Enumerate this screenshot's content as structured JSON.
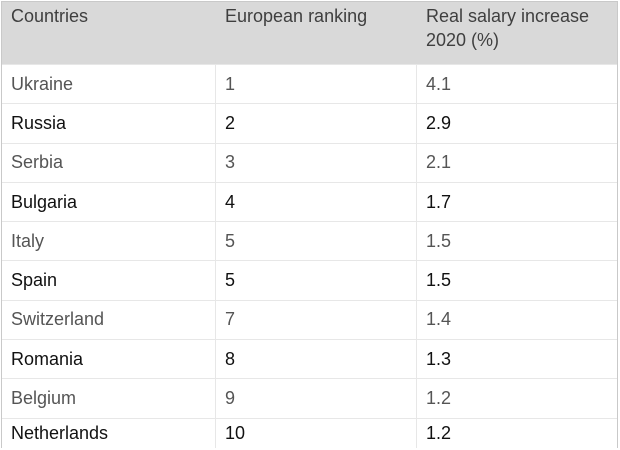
{
  "chart_data": {
    "type": "table",
    "columns": [
      "Countries",
      "European ranking",
      "Real salary increase 2020 (%)"
    ],
    "rows": [
      [
        "Ukraine",
        "1",
        "4.1"
      ],
      [
        "Russia",
        "2",
        "2.9"
      ],
      [
        "Serbia",
        "3",
        "2.1"
      ],
      [
        "Bulgaria",
        "4",
        "1.7"
      ],
      [
        "Italy",
        "5",
        "1.5"
      ],
      [
        "Spain",
        "5",
        "1.5"
      ],
      [
        "Switzerland",
        "7",
        "1.4"
      ],
      [
        "Romania",
        "8",
        "1.3"
      ],
      [
        "Belgium",
        "9",
        "1.2"
      ],
      [
        "Netherlands",
        "10",
        "1.2"
      ]
    ]
  }
}
